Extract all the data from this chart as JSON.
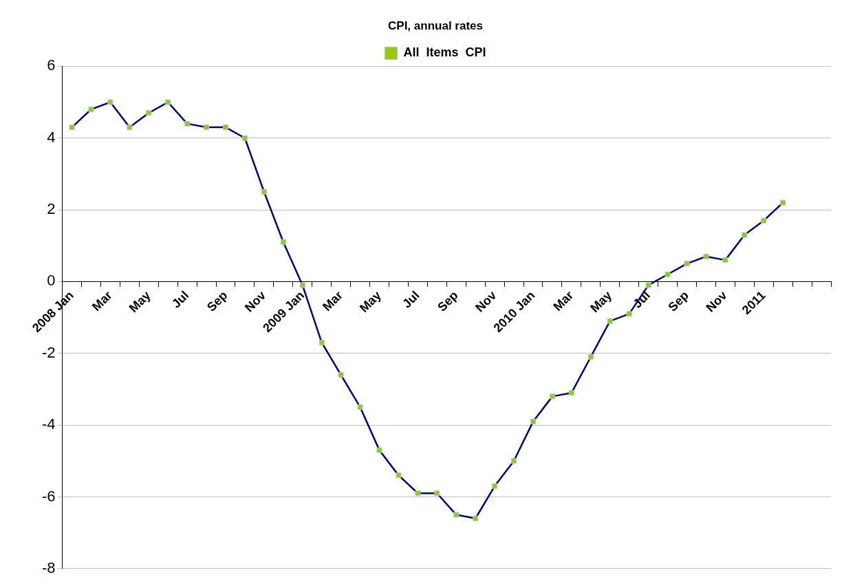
{
  "chart_data": {
    "type": "line",
    "title": "CPI, annual rates",
    "categories": [
      "2008 Jan",
      null,
      "Mar",
      null,
      "May",
      null,
      "Jul",
      null,
      "Sep",
      null,
      "Nov",
      null,
      "2009 Jan",
      null,
      "Mar",
      null,
      "May",
      null,
      "Jul",
      null,
      "Sep",
      null,
      "Nov",
      null,
      "2010 Jan",
      null,
      "Mar",
      null,
      "May",
      null,
      "Jul",
      null,
      "Sep",
      null,
      "Nov",
      null,
      "2011",
      null,
      null,
      null
    ],
    "series": [
      {
        "name": "All  Items  CPI",
        "color": "#000080",
        "values": [
          4.3,
          4.8,
          5.0,
          4.3,
          4.7,
          5.0,
          4.4,
          4.3,
          4.3,
          4.0,
          2.5,
          1.1,
          -0.1,
          -1.7,
          -2.6,
          -3.5,
          -4.7,
          -5.4,
          -5.9,
          -5.9,
          -6.5,
          -6.6,
          -5.7,
          -5.0,
          -3.9,
          -3.2,
          -3.1,
          -2.1,
          -1.1,
          -0.9,
          -0.1,
          0.2,
          0.5,
          0.7,
          0.6,
          1.3,
          1.7,
          2.2,
          null,
          null
        ]
      }
    ],
    "ylim": [
      -8,
      6
    ],
    "yticks": [
      -8,
      -6,
      -4,
      -2,
      0,
      2,
      4,
      6
    ],
    "grid": "y",
    "legend": "top",
    "marker": "square",
    "line_style": "solid"
  }
}
